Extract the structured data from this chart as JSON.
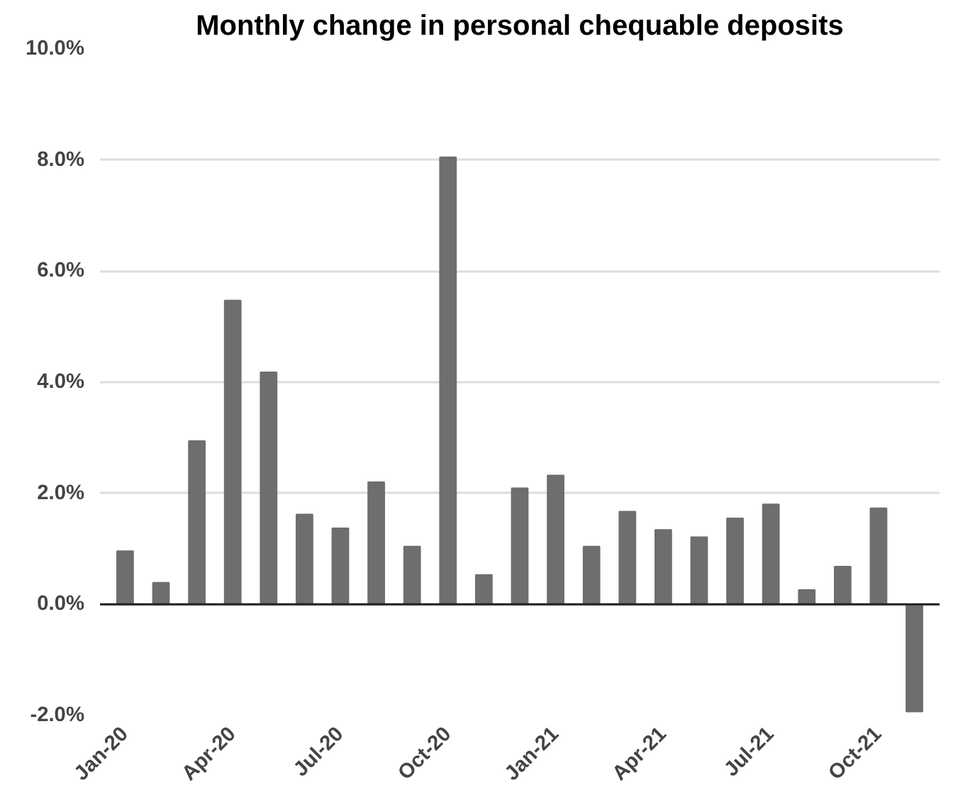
{
  "chart_data": {
    "type": "bar",
    "title": "Monthly change in personal chequable deposits",
    "categories": [
      "Jan-20",
      null,
      null,
      "Apr-20",
      null,
      null,
      "Jul-20",
      null,
      null,
      "Oct-20",
      null,
      null,
      "Jan-21",
      null,
      null,
      "Apr-21",
      null,
      null,
      "Jul-21",
      null,
      null,
      "Oct-21",
      null
    ],
    "values": [
      0.96,
      0.39,
      2.94,
      5.47,
      4.18,
      1.62,
      1.37,
      2.2,
      1.04,
      8.05,
      0.53,
      2.09,
      2.32,
      1.04,
      1.67,
      1.34,
      1.21,
      1.55,
      1.8,
      0.26,
      0.68,
      1.73,
      -1.93
    ],
    "color": "#6e6e6e",
    "ylim": [
      -2,
      10
    ],
    "yticks": [
      {
        "value": -2,
        "label": "-2.0%"
      },
      {
        "value": 0,
        "label": "0.0%"
      },
      {
        "value": 2,
        "label": "2.0%"
      },
      {
        "value": 4,
        "label": "4.0%"
      },
      {
        "value": 6,
        "label": "6.0%"
      },
      {
        "value": 8,
        "label": "8.0%"
      },
      {
        "value": 10,
        "label": "10.0%"
      }
    ],
    "grid": "y"
  }
}
